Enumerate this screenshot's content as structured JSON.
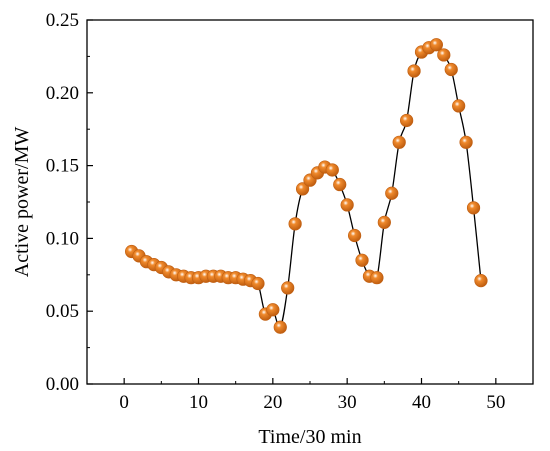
{
  "chart_data": {
    "type": "line",
    "title": "",
    "xlabel": "Time/30 min",
    "ylabel": "Active power/MW",
    "xlim": [
      -5,
      55
    ],
    "ylim": [
      0.0,
      0.25
    ],
    "x_ticks": [
      0,
      10,
      20,
      30,
      40,
      50
    ],
    "y_ticks": [
      0.0,
      0.05,
      0.1,
      0.15,
      0.2,
      0.25
    ],
    "x_tick_labels": [
      "0",
      "10",
      "20",
      "30",
      "40",
      "50"
    ],
    "y_tick_labels": [
      "0.00",
      "0.05",
      "0.10",
      "0.15",
      "0.20",
      "0.25"
    ],
    "grid": false,
    "legend": "none",
    "marker": "sphere",
    "colors": {
      "line": "#000000",
      "marker": "#f08a2c",
      "marker_dark": "#c05e10",
      "marker_highlight": "#ffffff"
    },
    "series": [
      {
        "x": [
          1,
          2,
          3,
          4,
          5,
          6,
          7,
          8,
          9,
          10,
          11,
          12,
          13,
          14,
          15,
          16,
          17,
          18,
          19,
          20,
          21,
          22,
          23,
          24,
          25,
          26,
          27,
          28,
          29,
          30,
          31,
          32,
          33,
          34,
          35,
          36,
          37,
          38,
          39,
          40,
          41,
          42,
          43,
          44,
          45,
          46,
          47,
          48
        ],
        "y": [
          0.091,
          0.088,
          0.084,
          0.082,
          0.08,
          0.077,
          0.075,
          0.074,
          0.073,
          0.073,
          0.074,
          0.074,
          0.074,
          0.073,
          0.073,
          0.072,
          0.071,
          0.069,
          0.048,
          0.051,
          0.039,
          0.066,
          0.11,
          0.134,
          0.14,
          0.145,
          0.149,
          0.147,
          0.137,
          0.123,
          0.102,
          0.085,
          0.074,
          0.073,
          0.111,
          0.131,
          0.166,
          0.181,
          0.215,
          0.228,
          0.231,
          0.233,
          0.226,
          0.216,
          0.191,
          0.166,
          0.121,
          0.071
        ]
      }
    ]
  }
}
